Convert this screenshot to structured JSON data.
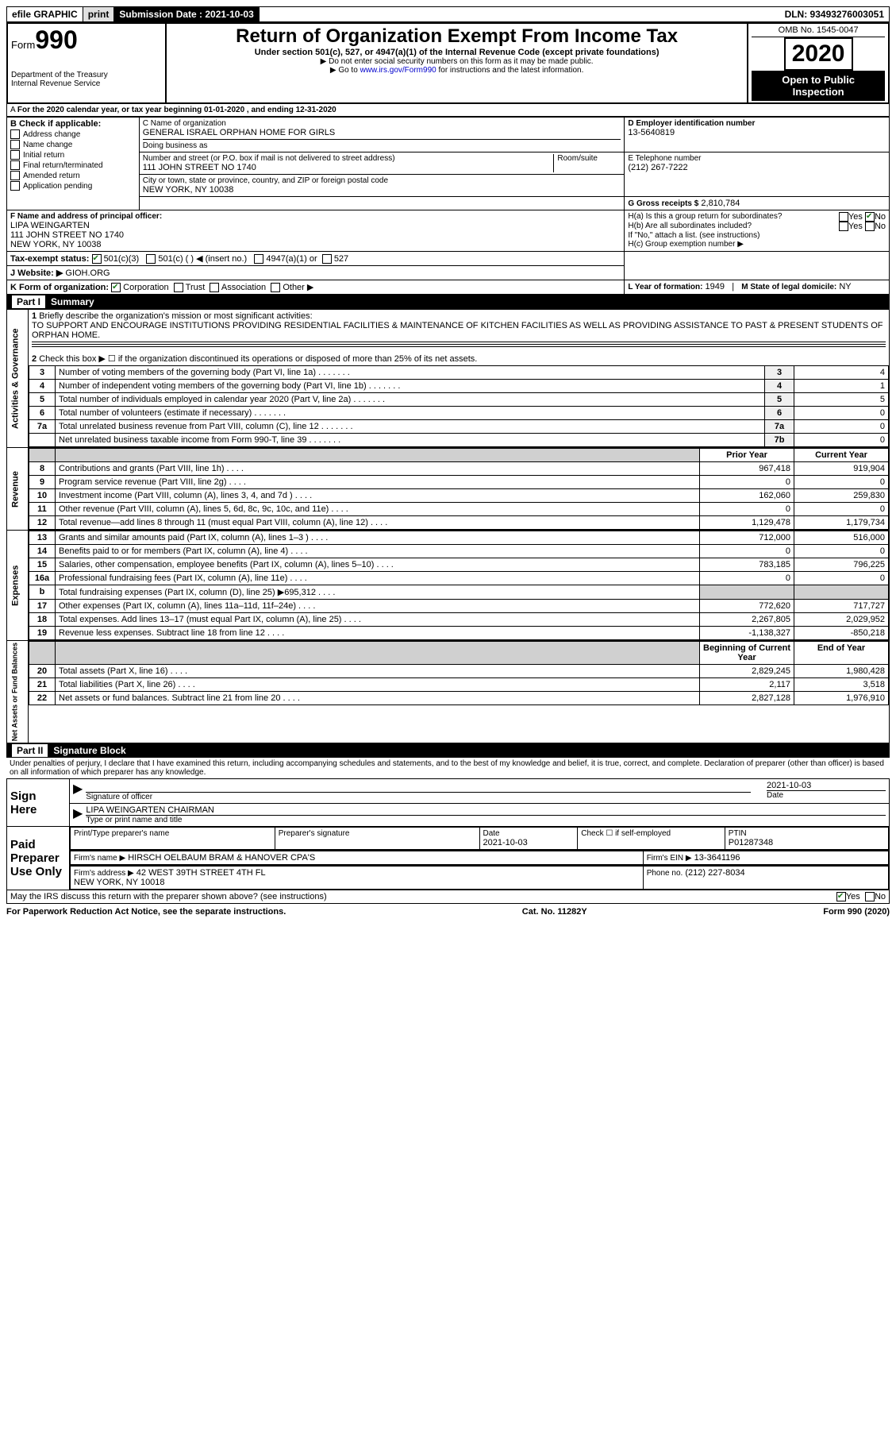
{
  "top": {
    "efile": "efile GRAPHIC",
    "print": "print",
    "submission_label": "Submission Date : 2021-10-03",
    "dln": "DLN: 93493276003051"
  },
  "header": {
    "form_prefix": "Form",
    "form_number": "990",
    "dept": "Department of the Treasury",
    "irs": "Internal Revenue Service",
    "title": "Return of Organization Exempt From Income Tax",
    "subtitle": "Under section 501(c), 527, or 4947(a)(1) of the Internal Revenue Code (except private foundations)",
    "note1": "▶ Do not enter social security numbers on this form as it may be made public.",
    "note2_pre": "▶ Go to ",
    "note2_link": "www.irs.gov/Form990",
    "note2_post": " for instructions and the latest information.",
    "omb": "OMB No. 1545-0047",
    "year": "2020",
    "open": "Open to Public Inspection"
  },
  "period": {
    "text": "For the 2020 calendar year, or tax year beginning 01-01-2020   , and ending 12-31-2020"
  },
  "box_b": {
    "label": "B Check if applicable:",
    "items": [
      "Address change",
      "Name change",
      "Initial return",
      "Final return/terminated",
      "Amended return",
      "Application pending"
    ]
  },
  "box_c": {
    "name_label": "C Name of organization",
    "name": "GENERAL ISRAEL ORPHAN HOME FOR GIRLS",
    "dba_label": "Doing business as",
    "street_label": "Number and street (or P.O. box if mail is not delivered to street address)",
    "street": "111 JOHN STREET NO 1740",
    "room_label": "Room/suite",
    "city_label": "City or town, state or province, country, and ZIP or foreign postal code",
    "city": "NEW YORK, NY  10038"
  },
  "box_d": {
    "label": "D Employer identification number",
    "value": "13-5640819"
  },
  "box_e": {
    "label": "E Telephone number",
    "value": "(212) 267-7222"
  },
  "box_g": {
    "label": "G Gross receipts $",
    "value": "2,810,784"
  },
  "box_f": {
    "label": "F  Name and address of principal officer:",
    "name": "LIPA WEINGARTEN",
    "addr1": "111 JOHN STREET NO 1740",
    "addr2": "NEW YORK, NY  10038"
  },
  "box_h": {
    "a_label": "H(a)  Is this a group return for subordinates?",
    "b_label": "H(b)  Are all subordinates included?",
    "note": "If \"No,\" attach a list. (see instructions)",
    "c_label": "H(c)  Group exemption number ▶",
    "yes": "Yes",
    "no": "No"
  },
  "box_i": {
    "label": "Tax-exempt status:",
    "o1": "501(c)(3)",
    "o2": "501(c) (  ) ◀ (insert no.)",
    "o3": "4947(a)(1) or",
    "o4": "527"
  },
  "box_j": {
    "label": "J   Website: ▶",
    "value": "GIOH.ORG"
  },
  "box_k": {
    "label": "K Form of organization:",
    "o1": "Corporation",
    "o2": "Trust",
    "o3": "Association",
    "o4": "Other ▶"
  },
  "box_l": {
    "label": "L Year of formation:",
    "value": "1949"
  },
  "box_m": {
    "label": "M State of legal domicile:",
    "value": "NY"
  },
  "part1": {
    "title": "Summary",
    "q1": "Briefly describe the organization's mission or most significant activities:",
    "mission": "TO SUPPORT AND ENCOURAGE INSTITUTIONS PROVIDING RESIDENTIAL FACILITIES & MAINTENANCE OF KITCHEN FACILITIES AS WELL AS PROVIDING ASSISTANCE TO PAST & PRESENT STUDENTS OF ORPHAN HOME.",
    "q2": "Check this box ▶ ☐  if the organization discontinued its operations or disposed of more than 25% of its net assets.",
    "rows_governance": [
      {
        "n": "3",
        "d": "Number of voting members of the governing body (Part VI, line 1a)",
        "box": "3",
        "v": "4"
      },
      {
        "n": "4",
        "d": "Number of independent voting members of the governing body (Part VI, line 1b)",
        "box": "4",
        "v": "1"
      },
      {
        "n": "5",
        "d": "Total number of individuals employed in calendar year 2020 (Part V, line 2a)",
        "box": "5",
        "v": "5"
      },
      {
        "n": "6",
        "d": "Total number of volunteers (estimate if necessary)",
        "box": "6",
        "v": "0"
      },
      {
        "n": "7a",
        "d": "Total unrelated business revenue from Part VIII, column (C), line 12",
        "box": "7a",
        "v": "0"
      },
      {
        "n": "",
        "d": "Net unrelated business taxable income from Form 990-T, line 39",
        "box": "7b",
        "v": "0"
      }
    ],
    "prior_year": "Prior Year",
    "current_year": "Current Year",
    "rows_revenue": [
      {
        "n": "8",
        "d": "Contributions and grants (Part VIII, line 1h)",
        "py": "967,418",
        "cy": "919,904"
      },
      {
        "n": "9",
        "d": "Program service revenue (Part VIII, line 2g)",
        "py": "0",
        "cy": "0"
      },
      {
        "n": "10",
        "d": "Investment income (Part VIII, column (A), lines 3, 4, and 7d )",
        "py": "162,060",
        "cy": "259,830"
      },
      {
        "n": "11",
        "d": "Other revenue (Part VIII, column (A), lines 5, 6d, 8c, 9c, 10c, and 11e)",
        "py": "0",
        "cy": "0"
      },
      {
        "n": "12",
        "d": "Total revenue—add lines 8 through 11 (must equal Part VIII, column (A), line 12)",
        "py": "1,129,478",
        "cy": "1,179,734"
      }
    ],
    "rows_expenses": [
      {
        "n": "13",
        "d": "Grants and similar amounts paid (Part IX, column (A), lines 1–3 )",
        "py": "712,000",
        "cy": "516,000"
      },
      {
        "n": "14",
        "d": "Benefits paid to or for members (Part IX, column (A), line 4)",
        "py": "0",
        "cy": "0"
      },
      {
        "n": "15",
        "d": "Salaries, other compensation, employee benefits (Part IX, column (A), lines 5–10)",
        "py": "783,185",
        "cy": "796,225"
      },
      {
        "n": "16a",
        "d": "Professional fundraising fees (Part IX, column (A), line 11e)",
        "py": "0",
        "cy": "0"
      },
      {
        "n": "b",
        "d": "Total fundraising expenses (Part IX, column (D), line 25) ▶695,312",
        "py": "",
        "cy": "",
        "shade": true
      },
      {
        "n": "17",
        "d": "Other expenses (Part IX, column (A), lines 11a–11d, 11f–24e)",
        "py": "772,620",
        "cy": "717,727"
      },
      {
        "n": "18",
        "d": "Total expenses. Add lines 13–17 (must equal Part IX, column (A), line 25)",
        "py": "2,267,805",
        "cy": "2,029,952"
      },
      {
        "n": "19",
        "d": "Revenue less expenses. Subtract line 18 from line 12",
        "py": "-1,138,327",
        "cy": "-850,218"
      }
    ],
    "bocy": "Beginning of Current Year",
    "eoy": "End of Year",
    "rows_netassets": [
      {
        "n": "20",
        "d": "Total assets (Part X, line 16)",
        "py": "2,829,245",
        "cy": "1,980,428"
      },
      {
        "n": "21",
        "d": "Total liabilities (Part X, line 26)",
        "py": "2,117",
        "cy": "3,518"
      },
      {
        "n": "22",
        "d": "Net assets or fund balances. Subtract line 21 from line 20",
        "py": "2,827,128",
        "cy": "1,976,910"
      }
    ],
    "labels": {
      "gov": "Activities & Governance",
      "rev": "Revenue",
      "exp": "Expenses",
      "na": "Net Assets or Fund Balances"
    }
  },
  "part2": {
    "title": "Signature Block",
    "perjury": "Under penalties of perjury, I declare that I have examined this return, including accompanying schedules and statements, and to the best of my knowledge and belief, it is true, correct, and complete. Declaration of preparer (other than officer) is based on all information of which preparer has any knowledge.",
    "sign_here": "Sign Here",
    "sig_officer": "Signature of officer",
    "date_label": "Date",
    "date": "2021-10-03",
    "officer_name": "LIPA WEINGARTEN  CHAIRMAN",
    "type_name": "Type or print name and title",
    "paid": "Paid Preparer Use Only",
    "pt_name_label": "Print/Type preparer's name",
    "pt_sig_label": "Preparer's signature",
    "pt_date_label": "Date",
    "pt_date": "2021-10-03",
    "pt_check": "Check ☐ if self-employed",
    "ptin_label": "PTIN",
    "ptin": "P01287348",
    "firm_name_label": "Firm's name   ▶",
    "firm_name": "HIRSCH OELBAUM BRAM & HANOVER CPA'S",
    "firm_ein_label": "Firm's EIN ▶",
    "firm_ein": "13-3641196",
    "firm_addr_label": "Firm's address ▶",
    "firm_addr1": "42 WEST 39TH STREET 4TH FL",
    "firm_addr2": "NEW YORK, NY  10018",
    "phone_label": "Phone no.",
    "phone": "(212) 227-8034",
    "discuss": "May the IRS discuss this return with the preparer shown above? (see instructions)",
    "yes": "Yes",
    "no": "No"
  },
  "footer": {
    "left": "For Paperwork Reduction Act Notice, see the separate instructions.",
    "mid": "Cat. No. 11282Y",
    "right": "Form 990 (2020)"
  }
}
